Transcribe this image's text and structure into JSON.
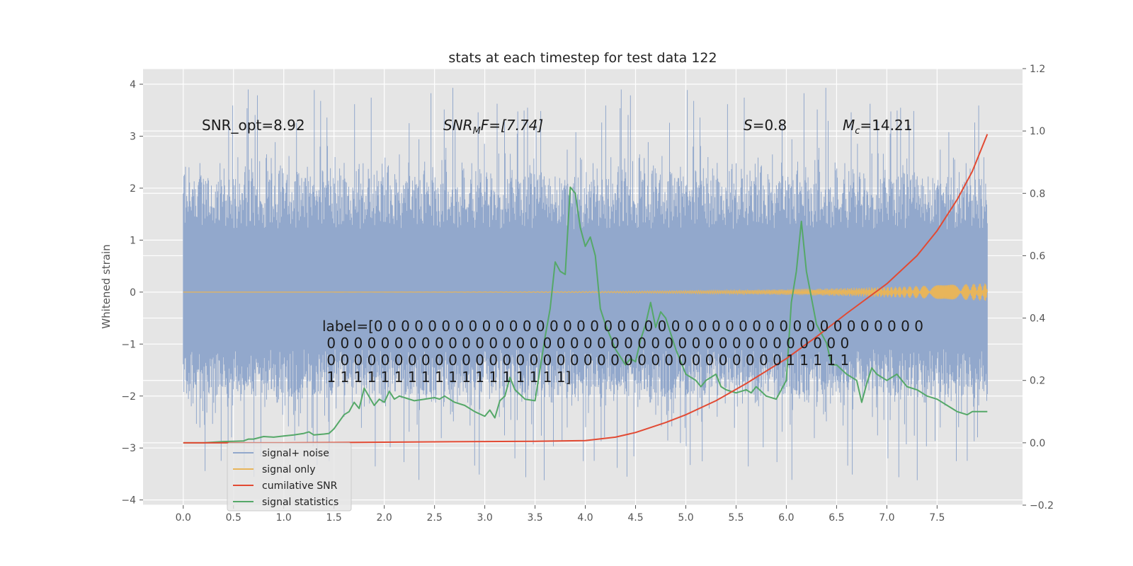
{
  "chart_data": {
    "type": "line",
    "title": "stats at each timestep for test data 122",
    "ylabel": "Whitened strain",
    "xlim": [
      -0.4,
      8.35
    ],
    "ylim": [
      -4.1,
      4.3
    ],
    "y2lim": [
      -0.2,
      1.2
    ],
    "xticks": [
      "0.0",
      "0.5",
      "1.0",
      "1.5",
      "2.0",
      "2.5",
      "3.0",
      "3.5",
      "4.0",
      "4.5",
      "5.0",
      "5.5",
      "6.0",
      "6.5",
      "7.0",
      "7.5"
    ],
    "yticks": [
      "4",
      "3",
      "2",
      "1",
      "0",
      "−1",
      "−2",
      "−3",
      "−4"
    ],
    "y2ticks": [
      "1.2",
      "1.0",
      "0.8",
      "0.6",
      "0.4",
      "0.2",
      "0.0",
      "−0.2"
    ],
    "annotations": {
      "snr_opt": "SNR_opt=8.92",
      "snr_mf_main": "SNR",
      "snr_mf_sub": "M",
      "snr_mf_rest": "F=[7.74]",
      "s_sym": "S",
      "s_val": "=0.8",
      "mc_sym": "M",
      "mc_sub": "c",
      "mc_val": "=14.21"
    },
    "label_lines": [
      "label=[0 0 0 0 0 0 0 0 0 0 0 0 0 0 0 0 0 0 0 0 0 0 0 0 0 0 0 0 0 0 0 0 0 0 0 0 0 0 0 0 0",
      " 0 0 0 0 0 0 0 0 0 0 0 0 0 0 0 0 0 0 0 0 0 0 0 0 0 0 0 0 0 0 0 0 0 0 0 0 0 0 0",
      " 0 0 0 0 0 0 0 0 0 0 0 0 0 0 0 0 0 0 0 0 0 0 0 0 0 0 0 0 0 0 0 0 0 0 1 1 1 1 1",
      " 1 1 1 1 1 1 1 1 1 1 1 1 1 1 1 1 1 1]"
    ],
    "series": [
      {
        "name": "signal+ noise",
        "color": "#92a8cc",
        "axis": "left",
        "style": "dense-noise",
        "x_range": [
          0.0,
          8.0
        ],
        "band_core": [
          -0.45,
          0.75
        ],
        "envelope": [
          -2.0,
          2.2
        ],
        "extremes": [
          -3.7,
          4.0
        ]
      },
      {
        "name": "signal only",
        "color": "#e8b55a",
        "axis": "left",
        "style": "chirp",
        "x_range": [
          0.0,
          8.0
        ],
        "amplitude_end": 0.17
      },
      {
        "name": "cumilative SNR",
        "color": "#e24a33",
        "axis": "right",
        "x": [
          0.0,
          1.0,
          2.0,
          3.0,
          3.5,
          4.0,
          4.3,
          4.5,
          4.8,
          5.0,
          5.3,
          5.6,
          6.0,
          6.3,
          6.6,
          7.0,
          7.3,
          7.5,
          7.7,
          7.85,
          8.0
        ],
        "y": [
          0.0,
          0.0,
          0.002,
          0.004,
          0.005,
          0.007,
          0.018,
          0.033,
          0.065,
          0.09,
          0.135,
          0.19,
          0.27,
          0.34,
          0.415,
          0.51,
          0.6,
          0.68,
          0.78,
          0.87,
          0.99
        ]
      },
      {
        "name": "signal statistics",
        "color": "#55a868",
        "axis": "right",
        "x": [
          0.0,
          0.1,
          0.2,
          0.3,
          0.4,
          0.5,
          0.6,
          0.65,
          0.7,
          0.8,
          0.9,
          1.0,
          1.1,
          1.2,
          1.25,
          1.3,
          1.4,
          1.45,
          1.5,
          1.6,
          1.65,
          1.7,
          1.75,
          1.8,
          1.9,
          1.95,
          2.0,
          2.05,
          2.1,
          2.15,
          2.2,
          2.3,
          2.4,
          2.5,
          2.55,
          2.6,
          2.7,
          2.8,
          2.9,
          3.0,
          3.05,
          3.1,
          3.15,
          3.2,
          3.25,
          3.3,
          3.35,
          3.4,
          3.5,
          3.6,
          3.65,
          3.7,
          3.75,
          3.8,
          3.85,
          3.9,
          3.95,
          4.0,
          4.05,
          4.1,
          4.15,
          4.2,
          4.3,
          4.4,
          4.45,
          4.5,
          4.55,
          4.6,
          4.65,
          4.7,
          4.75,
          4.8,
          4.85,
          4.9,
          5.0,
          5.1,
          5.15,
          5.2,
          5.3,
          5.35,
          5.4,
          5.5,
          5.6,
          5.65,
          5.7,
          5.8,
          5.9,
          6.0,
          6.05,
          6.1,
          6.15,
          6.2,
          6.3,
          6.35,
          6.4,
          6.45,
          6.5,
          6.6,
          6.7,
          6.75,
          6.8,
          6.85,
          6.9,
          7.0,
          7.1,
          7.2,
          7.3,
          7.4,
          7.5,
          7.6,
          7.65,
          7.7,
          7.8,
          7.85,
          7.9,
          8.0
        ],
        "y": [
          0.0,
          0.0,
          0.0,
          0.002,
          0.004,
          0.005,
          0.006,
          0.012,
          0.012,
          0.02,
          0.018,
          0.022,
          0.025,
          0.03,
          0.035,
          0.025,
          0.028,
          0.03,
          0.045,
          0.09,
          0.1,
          0.13,
          0.11,
          0.175,
          0.12,
          0.14,
          0.13,
          0.165,
          0.14,
          0.15,
          0.145,
          0.135,
          0.14,
          0.145,
          0.14,
          0.15,
          0.13,
          0.12,
          0.1,
          0.085,
          0.105,
          0.08,
          0.135,
          0.15,
          0.21,
          0.17,
          0.155,
          0.14,
          0.135,
          0.34,
          0.43,
          0.58,
          0.55,
          0.54,
          0.82,
          0.8,
          0.69,
          0.63,
          0.66,
          0.6,
          0.43,
          0.38,
          0.3,
          0.25,
          0.27,
          0.26,
          0.33,
          0.38,
          0.45,
          0.37,
          0.42,
          0.4,
          0.35,
          0.3,
          0.22,
          0.2,
          0.18,
          0.2,
          0.22,
          0.18,
          0.17,
          0.16,
          0.17,
          0.16,
          0.18,
          0.15,
          0.14,
          0.2,
          0.45,
          0.55,
          0.71,
          0.55,
          0.38,
          0.35,
          0.32,
          0.25,
          0.25,
          0.22,
          0.2,
          0.13,
          0.19,
          0.24,
          0.22,
          0.2,
          0.22,
          0.18,
          0.17,
          0.15,
          0.14,
          0.12,
          0.11,
          0.1,
          0.09,
          0.1,
          0.1,
          0.1
        ]
      }
    ],
    "legend": {
      "position": "lower-left",
      "entries": [
        "signal+ noise",
        "signal only",
        "cumilative SNR",
        "signal statistics"
      ]
    },
    "colors": {
      "background": "#e5e5e5",
      "grid": "#ffffff"
    }
  }
}
